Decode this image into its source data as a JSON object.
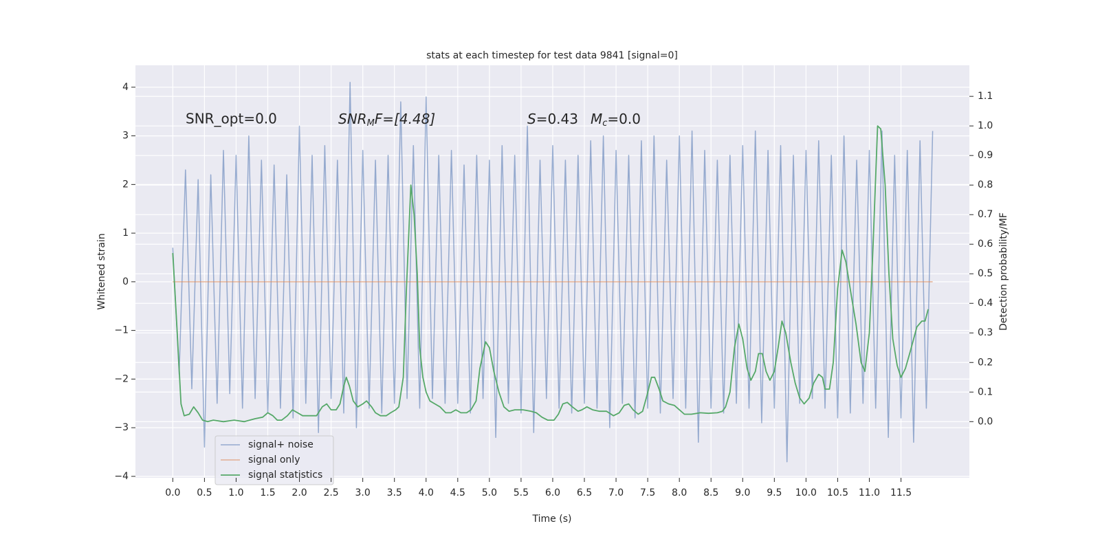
{
  "chart_data": {
    "type": "line",
    "title": "stats at each timestep for test data 9841 [signal=0]",
    "x_label": "Time (s)",
    "y_label": "Whitened strain",
    "y2_label": "Detection probability/MF",
    "annotations": [
      "SNR_opt=0.0",
      [
        "SNR",
        "M",
        "F=[4.48]"
      ],
      [
        "S",
        "=0.43"
      ],
      [
        "M",
        "c",
        "=0.0"
      ]
    ],
    "xlim": [
      -0.59,
      12.58
    ],
    "ylim": [
      -4.03,
      4.45
    ],
    "y2lim": [
      -0.19,
      1.205
    ],
    "xticks": [
      {
        "value": 0,
        "label": "0.0"
      },
      {
        "value": 0.5,
        "label": "0.5"
      },
      {
        "value": 1,
        "label": "1.0"
      },
      {
        "value": 1.5,
        "label": "1.5"
      },
      {
        "value": 2,
        "label": "2.0"
      },
      {
        "value": 2.5,
        "label": "2.5"
      },
      {
        "value": 3,
        "label": "3.0"
      },
      {
        "value": 3.5,
        "label": "3.5"
      },
      {
        "value": 4,
        "label": "4.0"
      },
      {
        "value": 4.5,
        "label": "4.5"
      },
      {
        "value": 5,
        "label": "5.0"
      },
      {
        "value": 5.5,
        "label": "5.5"
      },
      {
        "value": 6,
        "label": "6.0"
      },
      {
        "value": 6.5,
        "label": "6.5"
      },
      {
        "value": 7,
        "label": "7.0"
      },
      {
        "value": 7.5,
        "label": "7.5"
      },
      {
        "value": 8,
        "label": "8.0"
      },
      {
        "value": 8.5,
        "label": "8.5"
      },
      {
        "value": 9,
        "label": "9.0"
      },
      {
        "value": 9.5,
        "label": "9.5"
      },
      {
        "value": 10,
        "label": "10.0"
      },
      {
        "value": 10.5,
        "label": "10.5"
      },
      {
        "value": 11,
        "label": "11.0"
      },
      {
        "value": 11.5,
        "label": "11.5"
      }
    ],
    "yticks": [
      {
        "value": -4,
        "label": "−4"
      },
      {
        "value": -3,
        "label": "−3"
      },
      {
        "value": -2,
        "label": "−2"
      },
      {
        "value": -1,
        "label": "−1"
      },
      0,
      1,
      2,
      3,
      4
    ],
    "y2ticks": [
      {
        "value": 0,
        "label": "0.0"
      },
      {
        "value": 0.1,
        "label": "0.1"
      },
      {
        "value": 0.2,
        "label": "0.2"
      },
      {
        "value": 0.3,
        "label": "0.3"
      },
      {
        "value": 0.4,
        "label": "0.4"
      },
      {
        "value": 0.5,
        "label": "0.5"
      },
      {
        "value": 0.6,
        "label": "0.6"
      },
      {
        "value": 0.7,
        "label": "0.7"
      },
      {
        "value": 0.8,
        "label": "0.8"
      },
      {
        "value": 0.9,
        "label": "0.9"
      },
      {
        "value": 1,
        "label": "1.0"
      },
      {
        "value": 1.1,
        "label": "1.1"
      }
    ],
    "grid": true,
    "legend": "lower left",
    "series": [
      {
        "name": "signal+ noise",
        "color": "#4c72b0",
        "axis": "y",
        "x": [
          0,
          0.1,
          0.2,
          0.3,
          0.4,
          0.5,
          0.6,
          0.7,
          0.8,
          0.9,
          1,
          1.1,
          1.2,
          1.3,
          1.4,
          1.5,
          1.6,
          1.7,
          1.8,
          1.9,
          2,
          2.1,
          2.2,
          2.3,
          2.4,
          2.5,
          2.6,
          2.7,
          2.8,
          2.9,
          3,
          3.1,
          3.2,
          3.3,
          3.4,
          3.5,
          3.6,
          3.7,
          3.8,
          3.9,
          4,
          4.1,
          4.2,
          4.3,
          4.4,
          4.5,
          4.6,
          4.7,
          4.8,
          4.9,
          5,
          5.1,
          5.2,
          5.3,
          5.4,
          5.5,
          5.6,
          5.7,
          5.8,
          5.9,
          6,
          6.1,
          6.2,
          6.3,
          6.4,
          6.5,
          6.6,
          6.7,
          6.8,
          6.9,
          7,
          7.1,
          7.2,
          7.3,
          7.4,
          7.5,
          7.6,
          7.7,
          7.8,
          7.9,
          8,
          8.1,
          8.2,
          8.3,
          8.4,
          8.5,
          8.6,
          8.7,
          8.8,
          8.9,
          9,
          9.1,
          9.2,
          9.3,
          9.4,
          9.5,
          9.6,
          9.7,
          9.8,
          9.9,
          10,
          10.1,
          10.2,
          10.3,
          10.4,
          10.5,
          10.6,
          10.7,
          10.8,
          10.9,
          11,
          11.1,
          11.2,
          11.3,
          11.4,
          11.5,
          11.6,
          11.7,
          11.8,
          11.9,
          12
        ],
        "values": [
          0.7,
          -1.9,
          2.3,
          -2.2,
          2.1,
          -3.4,
          2.2,
          -2.5,
          2.7,
          -2.3,
          2.6,
          -2.6,
          3.0,
          -2.4,
          2.5,
          -2.7,
          2.4,
          -2.6,
          2.2,
          -2.8,
          3.2,
          -2.5,
          2.6,
          -3.1,
          2.8,
          -2.4,
          2.5,
          -2.7,
          4.1,
          -3.0,
          2.7,
          -2.6,
          2.5,
          -2.7,
          2.6,
          -2.5,
          3.7,
          -2.4,
          2.8,
          -2.6,
          3.8,
          -2.4,
          2.6,
          -2.5,
          2.7,
          -2.5,
          2.4,
          -2.7,
          2.6,
          -2.4,
          2.5,
          -3.2,
          2.8,
          -2.5,
          2.6,
          -2.7,
          3.2,
          -3.1,
          2.5,
          -2.4,
          2.8,
          -2.6,
          2.5,
          -2.7,
          2.6,
          -2.5,
          2.9,
          -2.6,
          3.0,
          -3.0,
          2.7,
          -2.5,
          2.6,
          -2.8,
          2.9,
          -2.6,
          3.0,
          -2.7,
          2.5,
          -2.4,
          3.0,
          -2.6,
          3.1,
          -3.3,
          2.7,
          -2.6,
          2.5,
          -2.7,
          2.6,
          -2.5,
          2.8,
          -2.6,
          3.1,
          -2.9,
          2.7,
          -2.6,
          2.8,
          -3.7,
          2.6,
          -2.5,
          2.7,
          -2.4,
          2.9,
          -2.6,
          2.6,
          -2.8,
          3.0,
          -2.7,
          2.5,
          -2.5,
          2.7,
          -2.6,
          3.1,
          -3.2,
          2.6,
          -2.8,
          2.7,
          -3.3,
          2.9,
          -2.6,
          3.1
        ]
      },
      {
        "name": "signal only",
        "color": "#dd8452",
        "axis": "y",
        "x": [
          0,
          12
        ],
        "values": [
          0,
          0
        ]
      },
      {
        "name": "signal statistics",
        "color": "#55a868",
        "axis": "y2",
        "x": [
          0,
          0.07,
          0.13,
          0.18,
          0.26,
          0.33,
          0.4,
          0.47,
          0.55,
          0.64,
          0.8,
          0.97,
          1.13,
          1.3,
          1.42,
          1.5,
          1.58,
          1.65,
          1.72,
          1.81,
          1.89,
          1.97,
          2.05,
          2.16,
          2.27,
          2.36,
          2.43,
          2.5,
          2.58,
          2.64,
          2.7,
          2.74,
          2.79,
          2.85,
          2.92,
          3.0,
          3.06,
          3.14,
          3.2,
          3.28,
          3.37,
          3.44,
          3.52,
          3.57,
          3.64,
          3.69,
          3.76,
          3.81,
          3.86,
          3.9,
          3.95,
          4.0,
          4.06,
          4.14,
          4.22,
          4.31,
          4.39,
          4.47,
          4.55,
          4.64,
          4.71,
          4.79,
          4.85,
          4.94,
          5.0,
          5.07,
          5.15,
          5.23,
          5.31,
          5.4,
          5.53,
          5.66,
          5.74,
          5.83,
          5.92,
          6.02,
          6.09,
          6.16,
          6.23,
          6.31,
          6.4,
          6.46,
          6.54,
          6.63,
          6.74,
          6.85,
          6.96,
          7.05,
          7.13,
          7.2,
          7.27,
          7.35,
          7.42,
          7.49,
          7.56,
          7.61,
          7.68,
          7.74,
          7.83,
          7.92,
          8.0,
          8.08,
          8.19,
          8.33,
          8.46,
          8.6,
          8.68,
          8.73,
          8.8,
          8.87,
          8.94,
          9.0,
          9.07,
          9.13,
          9.2,
          9.25,
          9.31,
          9.37,
          9.43,
          9.5,
          9.56,
          9.62,
          9.68,
          9.76,
          9.83,
          9.9,
          9.97,
          10.05,
          10.12,
          10.2,
          10.26,
          10.3,
          10.37,
          10.43,
          10.5,
          10.57,
          10.63,
          10.72,
          10.79,
          10.87,
          10.93,
          11.0,
          11.06,
          11.13,
          11.18,
          11.25,
          11.31,
          11.37,
          11.44,
          11.5,
          11.57,
          11.65,
          11.75,
          11.83,
          11.88,
          11.93
        ],
        "values": [
          0.57,
          0.3,
          0.06,
          0.02,
          0.025,
          0.05,
          0.03,
          0.005,
          0,
          0.005,
          0,
          0.005,
          0,
          0.01,
          0.015,
          0.03,
          0.02,
          0.005,
          0.005,
          0.02,
          0.04,
          0.03,
          0.02,
          0.02,
          0.02,
          0.05,
          0.06,
          0.04,
          0.04,
          0.06,
          0.12,
          0.15,
          0.12,
          0.07,
          0.05,
          0.06,
          0.07,
          0.05,
          0.03,
          0.02,
          0.02,
          0.03,
          0.04,
          0.05,
          0.15,
          0.45,
          0.8,
          0.7,
          0.5,
          0.25,
          0.15,
          0.1,
          0.07,
          0.06,
          0.05,
          0.03,
          0.03,
          0.04,
          0.03,
          0.03,
          0.04,
          0.07,
          0.18,
          0.27,
          0.25,
          0.17,
          0.1,
          0.05,
          0.035,
          0.04,
          0.04,
          0.035,
          0.03,
          0.015,
          0.005,
          0.005,
          0.025,
          0.06,
          0.065,
          0.05,
          0.035,
          0.04,
          0.05,
          0.04,
          0.035,
          0.035,
          0.02,
          0.03,
          0.055,
          0.06,
          0.04,
          0.025,
          0.035,
          0.09,
          0.15,
          0.15,
          0.11,
          0.07,
          0.06,
          0.055,
          0.04,
          0.025,
          0.025,
          0.03,
          0.028,
          0.03,
          0.035,
          0.05,
          0.1,
          0.25,
          0.33,
          0.28,
          0.18,
          0.14,
          0.17,
          0.23,
          0.23,
          0.17,
          0.14,
          0.17,
          0.25,
          0.34,
          0.3,
          0.2,
          0.13,
          0.08,
          0.06,
          0.08,
          0.13,
          0.16,
          0.15,
          0.11,
          0.11,
          0.2,
          0.45,
          0.58,
          0.54,
          0.42,
          0.33,
          0.2,
          0.17,
          0.3,
          0.6,
          1.0,
          0.99,
          0.8,
          0.5,
          0.28,
          0.19,
          0.15,
          0.18,
          0.24,
          0.32,
          0.34,
          0.34,
          0.38
        ]
      }
    ]
  }
}
